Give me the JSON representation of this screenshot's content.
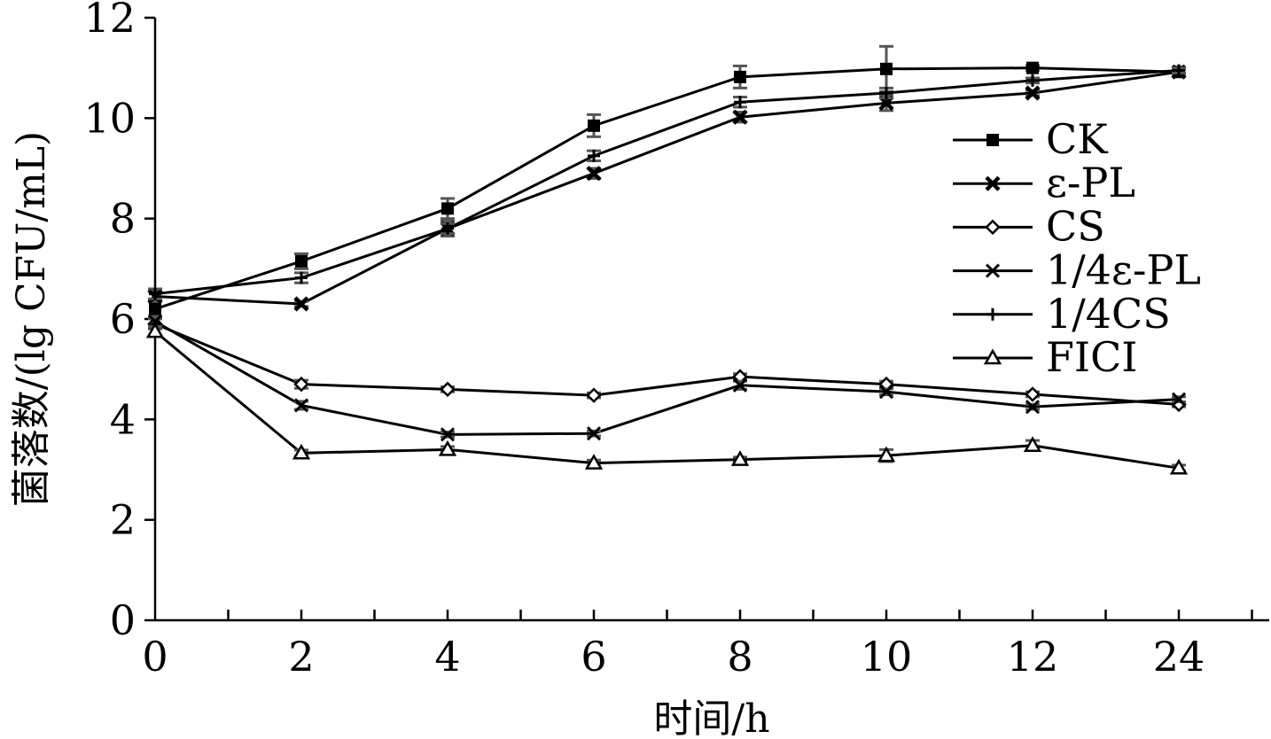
{
  "chart_data": {
    "type": "line",
    "xlabel": "时间/h",
    "ylabel": "菌落数/(lg CFU/mL)",
    "categories": [
      "0",
      "2",
      "4",
      "6",
      "8",
      "10",
      "12",
      "24"
    ],
    "ylim": [
      0,
      12
    ],
    "yticks": [
      "0",
      "2",
      "4",
      "6",
      "8",
      "10",
      "12"
    ],
    "legend_position": "right",
    "series": [
      {
        "name": "CK",
        "marker": "square-filled",
        "values": [
          6.2,
          7.15,
          8.2,
          9.85,
          10.82,
          10.98,
          11.0,
          10.92
        ],
        "errors": [
          0.15,
          0.15,
          0.2,
          0.22,
          0.22,
          0.45,
          0.05,
          0.05
        ]
      },
      {
        "name": "ε-PL",
        "marker": "x-filled",
        "values": [
          6.45,
          6.3,
          7.8,
          8.9,
          10.02,
          10.3,
          10.5,
          10.92
        ],
        "errors": [
          0.1,
          0.05,
          0.15,
          0.1,
          0.1,
          0.15,
          0.05,
          0.05
        ]
      },
      {
        "name": "CS",
        "marker": "diamond-open",
        "values": [
          5.9,
          4.7,
          4.6,
          4.48,
          4.85,
          4.7,
          4.5,
          4.3
        ],
        "errors": [
          0.1,
          0.08,
          0.05,
          0.05,
          0.06,
          0.06,
          0.05,
          0.05
        ]
      },
      {
        "name": "1/4ε-PL",
        "marker": "x",
        "values": [
          5.95,
          4.28,
          3.7,
          3.72,
          4.68,
          4.55,
          4.25,
          4.4
        ],
        "errors": [
          0.1,
          0.08,
          0.05,
          0.05,
          0.08,
          0.06,
          0.05,
          0.05
        ]
      },
      {
        "name": "1/4CS",
        "marker": "plus",
        "values": [
          6.5,
          6.82,
          7.8,
          9.25,
          10.32,
          10.5,
          10.75,
          10.95
        ],
        "errors": [
          0.1,
          0.1,
          0.1,
          0.1,
          0.1,
          0.1,
          0.05,
          0.05
        ]
      },
      {
        "name": "FICI",
        "marker": "triangle-open",
        "values": [
          5.75,
          3.33,
          3.4,
          3.13,
          3.2,
          3.28,
          3.48,
          3.03
        ],
        "errors": [
          0.1,
          0.06,
          0.06,
          0.06,
          0.05,
          0.12,
          0.1,
          0.06
        ]
      }
    ]
  }
}
